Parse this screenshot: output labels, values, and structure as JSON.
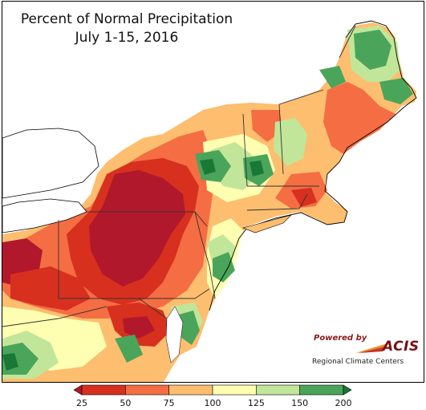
{
  "title": {
    "line1": "Percent of Normal Precipitation",
    "line2": "July 1-15, 2016"
  },
  "logo": {
    "powered_by": "Powered by",
    "name": "ACIS",
    "subtitle": "Regional Climate Centers"
  },
  "legend": {
    "ticks": [
      "25",
      "50",
      "75",
      "100",
      "125",
      "150",
      "200"
    ],
    "colors": [
      "#b2182b",
      "#d7301f",
      "#f46d43",
      "#fdbe6f",
      "#ffffb2",
      "#c2e699",
      "#4aa55b",
      "#1a7837"
    ]
  },
  "colors": {
    "water": "#ffffff",
    "very_dry": "#b2182b",
    "dry": "#d7301f",
    "moderately_dry": "#f46d43",
    "slightly_dry": "#fdbe6f",
    "near_normal": "#ffffb2",
    "slightly_wet": "#c2e699",
    "wet": "#4aa55b",
    "very_wet": "#1a7837"
  }
}
